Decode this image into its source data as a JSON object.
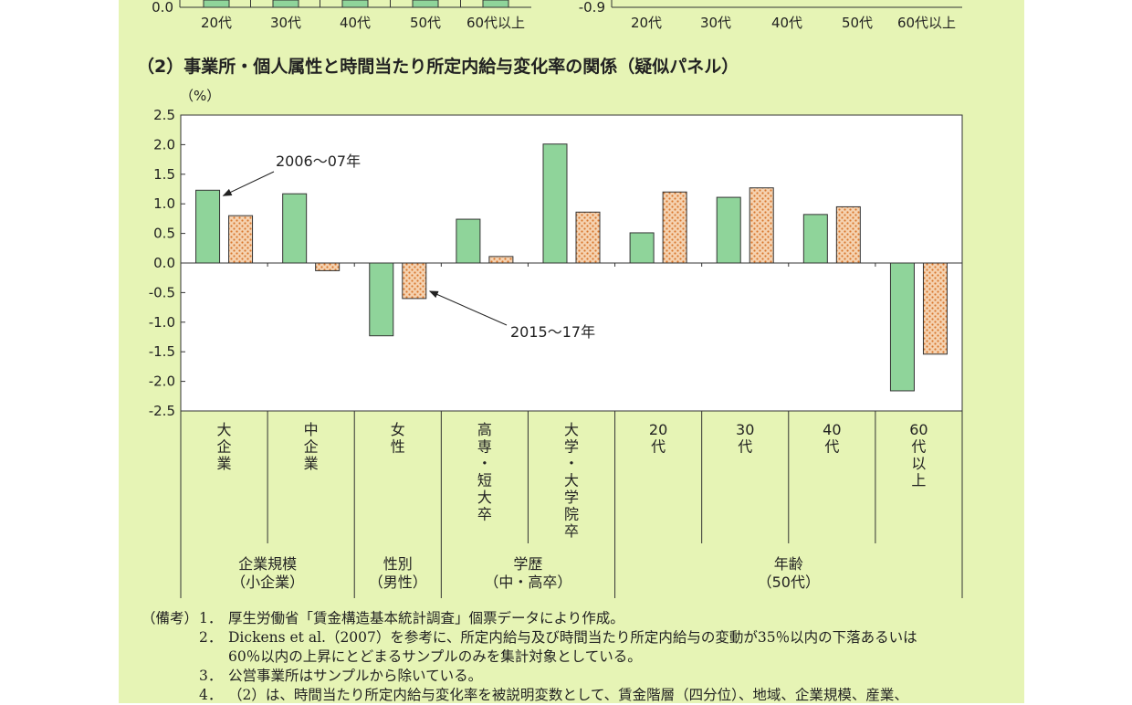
{
  "top_fragment": {
    "left": {
      "y_tick": "0.0",
      "categories": [
        "20代",
        "30代",
        "40代",
        "50代",
        "60代以上"
      ]
    },
    "right": {
      "y_tick": "-0.9",
      "categories": [
        "20代",
        "30代",
        "40代",
        "50代",
        "60代以上"
      ]
    }
  },
  "chart_title": "（2）事業所・個人属性と時間当たり所定内給与変化率の関係（疑似パネル）",
  "chart_data": {
    "type": "bar",
    "title": "（2）事業所・個人属性と時間当たり所定内給与変化率の関係（疑似パネル）",
    "ylabel": "（%）",
    "ylim": [
      -2.5,
      2.5
    ],
    "yticks": [
      "2.5",
      "2.0",
      "1.5",
      "1.0",
      "0.5",
      "0.0",
      "-0.5",
      "-1.0",
      "-1.5",
      "-2.0",
      "-2.5"
    ],
    "categories": [
      {
        "label": "大企業",
        "chars": [
          "大",
          "企",
          "業"
        ]
      },
      {
        "label": "中企業",
        "chars": [
          "中",
          "企",
          "業"
        ]
      },
      {
        "label": "女性",
        "chars": [
          "女",
          "性"
        ]
      },
      {
        "label": "高専・短大卒",
        "chars": [
          "高",
          "専",
          "・",
          "短",
          "大",
          "卒"
        ]
      },
      {
        "label": "大学・大学院卒",
        "chars": [
          "大",
          "学",
          "・",
          "大",
          "学",
          "院",
          "卒"
        ]
      },
      {
        "label": "20代",
        "chars": [
          "20",
          "代"
        ]
      },
      {
        "label": "30代",
        "chars": [
          "30",
          "代"
        ]
      },
      {
        "label": "40代",
        "chars": [
          "40",
          "代"
        ]
      },
      {
        "label": "60代以上",
        "chars": [
          "60",
          "代",
          "以",
          "上"
        ]
      }
    ],
    "groups": [
      {
        "line1": "企業規模",
        "line2": "（小企業）",
        "span": [
          0,
          2
        ]
      },
      {
        "line1": "性別",
        "line2": "（男性）",
        "span": [
          2,
          3
        ]
      },
      {
        "line1": "学歴",
        "line2": "（中・高卒）",
        "span": [
          3,
          5
        ]
      },
      {
        "line1": "年齢",
        "line2": "（50代）",
        "span": [
          5,
          9
        ]
      }
    ],
    "series": [
      {
        "name": "2006～07年",
        "color": "#8fd49a",
        "values": [
          1.23,
          1.17,
          -1.23,
          0.74,
          2.01,
          0.51,
          1.11,
          0.82,
          -2.16
        ]
      },
      {
        "name": "2015～17年",
        "color": "#f3c9a4",
        "values": [
          0.8,
          -0.13,
          -0.6,
          0.11,
          0.86,
          1.2,
          1.27,
          0.95,
          -1.54
        ]
      }
    ],
    "annotations": [
      {
        "text": "2006～07年",
        "series": 0,
        "category": 0
      },
      {
        "text": "2015～17年",
        "series": 1,
        "category": 2
      }
    ]
  },
  "notes": {
    "label": "（備考）",
    "items": [
      {
        "num": "1．",
        "lines": [
          "厚生労働省「賃金構造基本統計調査」個票データにより作成。"
        ]
      },
      {
        "num": "2．",
        "lines": [
          "Dickens et al.（2007）を参考に、所定内給与及び時間当たり所定内給与の変動が35％以内の下落あるいは",
          "60％以内の上昇にとどまるサンプルのみを集計対象としている。"
        ]
      },
      {
        "num": "3．",
        "lines": [
          "公営事業所はサンプルから除いている。"
        ]
      },
      {
        "num": "4．",
        "lines": [
          "（2）は、時間当たり所定内給与変化率を被説明変数として、賃金階層（四分位）、地域、企業規模、産業、"
        ]
      }
    ]
  }
}
